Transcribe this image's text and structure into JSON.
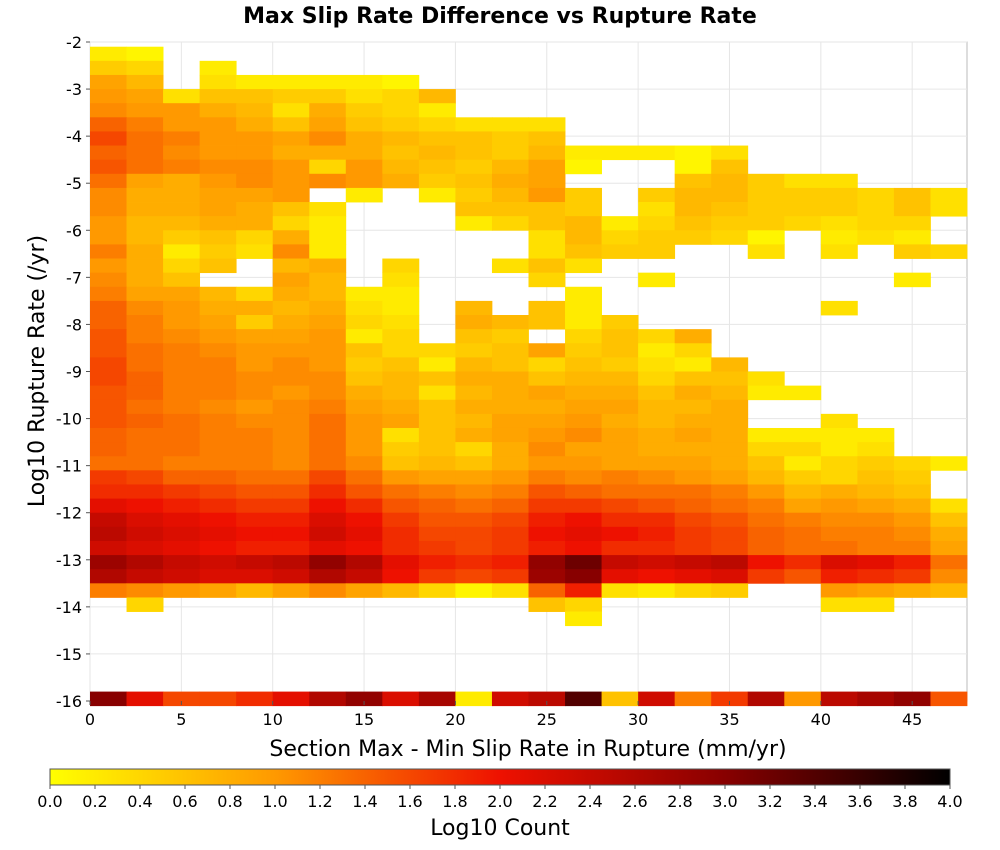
{
  "chart_data": {
    "type": "heatmap",
    "title": "Max Slip Rate Difference vs Rupture Rate",
    "xlabel": "Section Max - Min Slip Rate in Rupture (mm/yr)",
    "ylabel": "Log10 Rupture Rate (/yr)",
    "colorbar_label": "Log10 Count",
    "xlim": [
      0,
      48
    ],
    "ylim": [
      -16,
      -2
    ],
    "x_ticks": [
      0,
      5,
      10,
      15,
      20,
      25,
      30,
      35,
      40,
      45
    ],
    "y_ticks": [
      -2,
      -3,
      -4,
      -5,
      -6,
      -7,
      -8,
      -9,
      -10,
      -11,
      -12,
      -13,
      -14,
      -15,
      -16
    ],
    "color_range": [
      0.0,
      4.0
    ],
    "color_ticks": [
      "0.0",
      "0.2",
      "0.4",
      "0.6",
      "0.8",
      "1.0",
      "1.2",
      "1.4",
      "1.6",
      "1.8",
      "2.0",
      "2.2",
      "2.4",
      "2.6",
      "2.8",
      "3.0",
      "3.2",
      "3.4",
      "3.6",
      "3.8",
      "4.0"
    ],
    "colormap": [
      {
        "v": 0.0,
        "color": "#ffff00"
      },
      {
        "v": 1.0,
        "color": "#ff9900"
      },
      {
        "v": 2.0,
        "color": "#ee1100"
      },
      {
        "v": 3.0,
        "color": "#880000"
      },
      {
        "v": 4.0,
        "color": "#000000"
      }
    ],
    "grid": true,
    "x_bin_width": 2,
    "y_bin_height": 0.3,
    "y_bin_top": -2.1,
    "rows": [
      {
        "y": -2.25,
        "values": [
          0.2,
          0.1,
          null,
          null,
          null,
          null,
          null,
          null,
          null,
          null,
          null,
          null,
          null,
          null,
          null,
          null,
          null,
          null,
          null,
          null,
          null,
          null,
          null,
          null
        ]
      },
      {
        "y": -2.55,
        "values": [
          0.5,
          0.4,
          null,
          0.2,
          null,
          null,
          null,
          null,
          null,
          null,
          null,
          null,
          null,
          null,
          null,
          null,
          null,
          null,
          null,
          null,
          null,
          null,
          null,
          null
        ]
      },
      {
        "y": -2.85,
        "values": [
          0.9,
          0.7,
          null,
          0.3,
          0.2,
          0.2,
          0.2,
          0.2,
          0.1,
          null,
          null,
          null,
          null,
          null,
          null,
          null,
          null,
          null,
          null,
          null,
          null,
          null,
          null,
          null
        ]
      },
      {
        "y": -3.15,
        "values": [
          1.0,
          0.9,
          0.3,
          0.6,
          0.6,
          0.5,
          0.5,
          0.3,
          0.4,
          0.7,
          null,
          null,
          null,
          null,
          null,
          null,
          null,
          null,
          null,
          null,
          null,
          null,
          null,
          null
        ]
      },
      {
        "y": -3.45,
        "values": [
          1.1,
          1.0,
          1.0,
          0.8,
          0.7,
          0.3,
          0.8,
          0.5,
          0.4,
          0.2,
          null,
          null,
          null,
          null,
          null,
          null,
          null,
          null,
          null,
          null,
          null,
          null,
          null,
          null
        ]
      },
      {
        "y": -3.75,
        "values": [
          1.4,
          1.2,
          1.0,
          1.0,
          0.8,
          0.6,
          0.9,
          0.6,
          0.5,
          0.4,
          0.3,
          0.3,
          0.3,
          null,
          null,
          null,
          null,
          null,
          null,
          null,
          null,
          null,
          null,
          null
        ]
      },
      {
        "y": -4.05,
        "values": [
          1.6,
          1.3,
          1.2,
          1.0,
          1.0,
          0.9,
          1.1,
          0.8,
          0.7,
          0.6,
          0.6,
          0.5,
          0.6,
          null,
          null,
          null,
          null,
          null,
          null,
          null,
          null,
          null,
          null,
          null
        ]
      },
      {
        "y": -4.35,
        "values": [
          1.4,
          1.3,
          1.1,
          1.0,
          1.0,
          0.8,
          0.8,
          0.8,
          0.6,
          0.7,
          0.6,
          0.5,
          0.7,
          0.2,
          0.2,
          0.2,
          0.1,
          0.3,
          null,
          null,
          null,
          null,
          null,
          null
        ]
      },
      {
        "y": -4.65,
        "values": [
          1.5,
          1.3,
          1.2,
          1.1,
          1.1,
          1.0,
          0.4,
          1.0,
          0.7,
          0.6,
          0.5,
          0.7,
          0.9,
          0.1,
          null,
          null,
          0.1,
          0.6,
          null,
          null,
          null,
          null,
          null,
          null
        ]
      },
      {
        "y": -4.95,
        "values": [
          1.3,
          0.9,
          0.8,
          1.0,
          1.1,
          1.0,
          1.1,
          1.0,
          0.8,
          0.5,
          0.6,
          0.8,
          0.9,
          null,
          null,
          null,
          0.6,
          0.7,
          0.5,
          0.3,
          0.3,
          null,
          null,
          null
        ]
      },
      {
        "y": -5.25,
        "values": [
          1.1,
          0.8,
          0.8,
          0.9,
          0.9,
          1.0,
          null,
          0.2,
          null,
          0.2,
          0.5,
          0.7,
          1.0,
          0.5,
          null,
          0.5,
          0.7,
          0.7,
          0.5,
          0.5,
          0.5,
          0.4,
          0.6,
          0.3
        ]
      },
      {
        "y": -5.55,
        "values": [
          1.1,
          0.8,
          0.8,
          0.9,
          0.8,
          0.6,
          0.3,
          null,
          null,
          null,
          0.6,
          0.6,
          0.6,
          0.5,
          null,
          0.3,
          0.7,
          0.6,
          0.5,
          0.5,
          0.5,
          0.4,
          0.6,
          0.3
        ]
      },
      {
        "y": -5.85,
        "values": [
          1.0,
          0.7,
          0.7,
          0.8,
          0.8,
          0.4,
          0.2,
          null,
          null,
          null,
          0.2,
          0.4,
          0.6,
          0.7,
          0.2,
          0.4,
          0.6,
          0.5,
          0.5,
          0.4,
          0.3,
          0.4,
          0.4,
          null
        ]
      },
      {
        "y": -6.15,
        "values": [
          1.0,
          0.7,
          0.5,
          0.6,
          0.4,
          0.8,
          0.2,
          null,
          null,
          null,
          null,
          null,
          0.3,
          0.7,
          0.4,
          0.5,
          0.5,
          0.4,
          0.1,
          null,
          0.2,
          0.3,
          0.2,
          null
        ]
      },
      {
        "y": -6.45,
        "values": [
          1.2,
          0.8,
          0.2,
          0.5,
          0.3,
          1.1,
          0.2,
          null,
          null,
          null,
          null,
          null,
          0.3,
          0.6,
          0.5,
          0.5,
          null,
          null,
          0.3,
          null,
          0.3,
          null,
          0.5,
          0.4
        ]
      },
      {
        "y": -6.75,
        "values": [
          1.0,
          0.8,
          0.4,
          0.6,
          null,
          0.7,
          0.8,
          null,
          0.4,
          null,
          null,
          0.3,
          0.6,
          0.3,
          null,
          null,
          null,
          null,
          null,
          null,
          null,
          null,
          null,
          null
        ]
      },
      {
        "y": -7.05,
        "values": [
          1.1,
          0.8,
          0.6,
          null,
          null,
          0.9,
          0.7,
          null,
          0.3,
          null,
          null,
          null,
          0.4,
          null,
          null,
          0.2,
          null,
          null,
          null,
          null,
          null,
          null,
          0.2,
          null
        ]
      },
      {
        "y": -7.35,
        "values": [
          1.2,
          0.9,
          0.9,
          0.7,
          0.4,
          0.8,
          0.7,
          0.2,
          0.2,
          null,
          null,
          null,
          null,
          0.2,
          null,
          null,
          null,
          null,
          null,
          null,
          null,
          null,
          null,
          null
        ]
      },
      {
        "y": -7.65,
        "values": [
          1.4,
          1.1,
          1.0,
          0.8,
          0.8,
          0.7,
          0.8,
          0.3,
          0.2,
          null,
          0.7,
          null,
          0.6,
          0.2,
          null,
          null,
          null,
          null,
          null,
          null,
          0.3,
          null,
          null,
          null
        ]
      },
      {
        "y": -7.95,
        "values": [
          1.4,
          1.2,
          1.0,
          0.9,
          0.5,
          0.8,
          0.9,
          0.4,
          0.3,
          null,
          0.8,
          0.7,
          0.6,
          0.2,
          0.5,
          null,
          null,
          null,
          null,
          null,
          null,
          null,
          null,
          null
        ]
      },
      {
        "y": -8.25,
        "values": [
          1.5,
          1.2,
          1.1,
          1.0,
          0.9,
          0.9,
          1.0,
          0.2,
          0.4,
          null,
          0.6,
          0.5,
          null,
          0.4,
          0.6,
          0.4,
          0.8,
          null,
          null,
          null,
          null,
          null,
          null,
          null
        ]
      },
      {
        "y": -8.55,
        "values": [
          1.5,
          1.3,
          1.2,
          1.1,
          1.0,
          1.0,
          1.0,
          0.6,
          0.4,
          0.4,
          0.5,
          0.6,
          0.9,
          0.5,
          0.6,
          0.2,
          0.4,
          null,
          null,
          null,
          null,
          null,
          null,
          null
        ]
      },
      {
        "y": -8.85,
        "values": [
          1.6,
          1.3,
          1.2,
          1.2,
          1.0,
          1.1,
          1.0,
          0.5,
          0.6,
          0.2,
          0.7,
          0.6,
          0.4,
          0.6,
          0.5,
          0.3,
          0.2,
          0.7,
          null,
          null,
          null,
          null,
          null,
          null
        ]
      },
      {
        "y": -9.15,
        "values": [
          1.6,
          1.4,
          1.2,
          1.2,
          1.1,
          1.1,
          1.1,
          0.6,
          0.7,
          0.6,
          0.8,
          0.8,
          0.6,
          0.7,
          0.7,
          0.4,
          0.6,
          0.6,
          0.3,
          null,
          null,
          null,
          null,
          null
        ]
      },
      {
        "y": -9.45,
        "values": [
          1.5,
          1.4,
          1.2,
          1.2,
          1.1,
          1.0,
          1.1,
          0.8,
          0.7,
          0.3,
          0.7,
          0.8,
          0.9,
          0.8,
          0.8,
          0.6,
          0.8,
          0.7,
          0.2,
          0.2,
          null,
          null,
          null,
          null
        ]
      },
      {
        "y": -9.75,
        "values": [
          1.5,
          1.3,
          1.2,
          1.1,
          1.0,
          1.1,
          1.2,
          0.9,
          0.8,
          0.6,
          0.8,
          0.8,
          0.8,
          0.9,
          0.9,
          0.7,
          0.7,
          0.8,
          null,
          null,
          null,
          null,
          null,
          null
        ]
      },
      {
        "y": -10.05,
        "values": [
          1.5,
          1.4,
          1.3,
          1.2,
          1.1,
          1.1,
          1.3,
          1.0,
          0.9,
          0.6,
          0.7,
          0.9,
          0.9,
          1.0,
          0.8,
          0.7,
          0.8,
          0.8,
          null,
          null,
          0.3,
          null,
          null,
          null
        ]
      },
      {
        "y": -10.35,
        "values": [
          1.4,
          1.3,
          1.3,
          1.2,
          1.2,
          1.1,
          1.3,
          1.0,
          0.3,
          0.6,
          0.8,
          0.9,
          1.0,
          1.1,
          0.9,
          0.8,
          0.9,
          0.8,
          0.2,
          0.2,
          0.2,
          0.2,
          null,
          null
        ]
      },
      {
        "y": -10.65,
        "values": [
          1.4,
          1.3,
          1.3,
          1.2,
          1.2,
          1.1,
          1.3,
          1.0,
          0.5,
          0.6,
          0.4,
          0.8,
          1.1,
          0.9,
          0.9,
          0.8,
          0.8,
          0.8,
          0.4,
          0.4,
          0.2,
          0.3,
          null,
          null
        ]
      },
      {
        "y": -10.95,
        "values": [
          1.3,
          1.3,
          1.2,
          1.2,
          1.2,
          1.1,
          1.3,
          1.1,
          0.6,
          0.7,
          0.6,
          0.8,
          1.0,
          1.0,
          0.9,
          0.9,
          0.9,
          0.8,
          0.6,
          0.2,
          0.4,
          0.5,
          0.4,
          0.2
        ]
      },
      {
        "y": -11.25,
        "values": [
          1.7,
          1.6,
          1.4,
          1.4,
          1.3,
          1.3,
          1.6,
          1.3,
          1.0,
          0.9,
          0.9,
          1.0,
          1.2,
          1.1,
          1.2,
          1.1,
          1.0,
          0.9,
          0.7,
          0.5,
          0.4,
          0.6,
          0.5,
          null
        ]
      },
      {
        "y": -11.55,
        "values": [
          1.8,
          1.8,
          1.7,
          1.6,
          1.5,
          1.5,
          1.8,
          1.5,
          1.3,
          1.2,
          1.1,
          1.2,
          1.5,
          1.4,
          1.3,
          1.3,
          1.3,
          1.2,
          1.0,
          0.7,
          0.8,
          0.7,
          0.6,
          null
        ]
      },
      {
        "y": -11.85,
        "values": [
          2.1,
          2.0,
          1.9,
          1.8,
          1.7,
          1.7,
          2.0,
          1.8,
          1.5,
          1.4,
          1.3,
          1.4,
          1.7,
          1.7,
          1.6,
          1.5,
          1.4,
          1.3,
          1.2,
          0.9,
          1.0,
          0.9,
          0.8,
          0.3
        ]
      },
      {
        "y": -12.15,
        "values": [
          2.4,
          2.2,
          2.1,
          2.0,
          1.9,
          1.9,
          2.2,
          2.0,
          1.7,
          1.5,
          1.5,
          1.6,
          1.9,
          2.0,
          1.8,
          1.8,
          1.6,
          1.5,
          1.3,
          1.2,
          1.1,
          1.1,
          1.0,
          0.6
        ]
      },
      {
        "y": -12.45,
        "values": [
          2.5,
          2.3,
          2.2,
          2.1,
          2.0,
          2.0,
          2.3,
          2.1,
          1.8,
          1.6,
          1.6,
          1.7,
          2.0,
          2.1,
          2.0,
          1.9,
          1.7,
          1.6,
          1.4,
          1.3,
          1.2,
          1.2,
          1.1,
          0.8
        ]
      },
      {
        "y": -12.75,
        "values": [
          2.3,
          2.2,
          2.1,
          2.0,
          1.9,
          1.9,
          2.1,
          2.0,
          1.8,
          1.7,
          1.6,
          1.7,
          1.9,
          2.0,
          1.8,
          1.8,
          1.7,
          1.6,
          1.4,
          1.3,
          1.3,
          1.2,
          1.2,
          0.9
        ]
      },
      {
        "y": -13.05,
        "values": [
          2.8,
          2.6,
          2.4,
          2.3,
          2.4,
          2.5,
          2.9,
          2.6,
          2.1,
          1.9,
          1.8,
          1.9,
          2.9,
          3.2,
          2.4,
          2.3,
          2.4,
          2.5,
          2.0,
          1.8,
          2.2,
          2.1,
          1.9,
          1.3
        ]
      },
      {
        "y": -13.35,
        "values": [
          2.6,
          2.4,
          2.3,
          2.2,
          2.2,
          2.3,
          2.6,
          2.4,
          2.0,
          1.7,
          1.6,
          1.7,
          2.8,
          3.0,
          2.1,
          2.0,
          2.1,
          2.2,
          1.7,
          1.5,
          1.9,
          1.8,
          1.7,
          1.1
        ]
      },
      {
        "y": -13.65,
        "values": [
          1.2,
          1.1,
          1.0,
          0.9,
          0.7,
          0.9,
          1.1,
          0.9,
          0.7,
          0.4,
          0.1,
          0.3,
          1.4,
          1.9,
          0.3,
          0.2,
          0.4,
          0.5,
          null,
          null,
          1.0,
          0.9,
          0.8,
          0.7
        ]
      },
      {
        "y": -13.95,
        "values": [
          null,
          0.4,
          null,
          null,
          null,
          null,
          null,
          null,
          null,
          null,
          null,
          null,
          0.6,
          0.4,
          null,
          null,
          null,
          null,
          null,
          null,
          0.3,
          0.3,
          null,
          null
        ]
      },
      {
        "y": -14.25,
        "values": [
          null,
          null,
          null,
          null,
          null,
          null,
          null,
          null,
          null,
          null,
          null,
          null,
          null,
          0.2,
          null,
          null,
          null,
          null,
          null,
          null,
          null,
          null,
          null,
          null
        ]
      },
      {
        "y": -15.95,
        "values": [
          3.0,
          2.1,
          1.6,
          1.6,
          1.8,
          2.1,
          2.6,
          2.9,
          2.2,
          2.7,
          0.2,
          2.3,
          2.5,
          3.4,
          0.6,
          2.3,
          1.2,
          1.7,
          2.6,
          1.0,
          2.5,
          2.7,
          2.9,
          1.5
        ]
      }
    ]
  }
}
